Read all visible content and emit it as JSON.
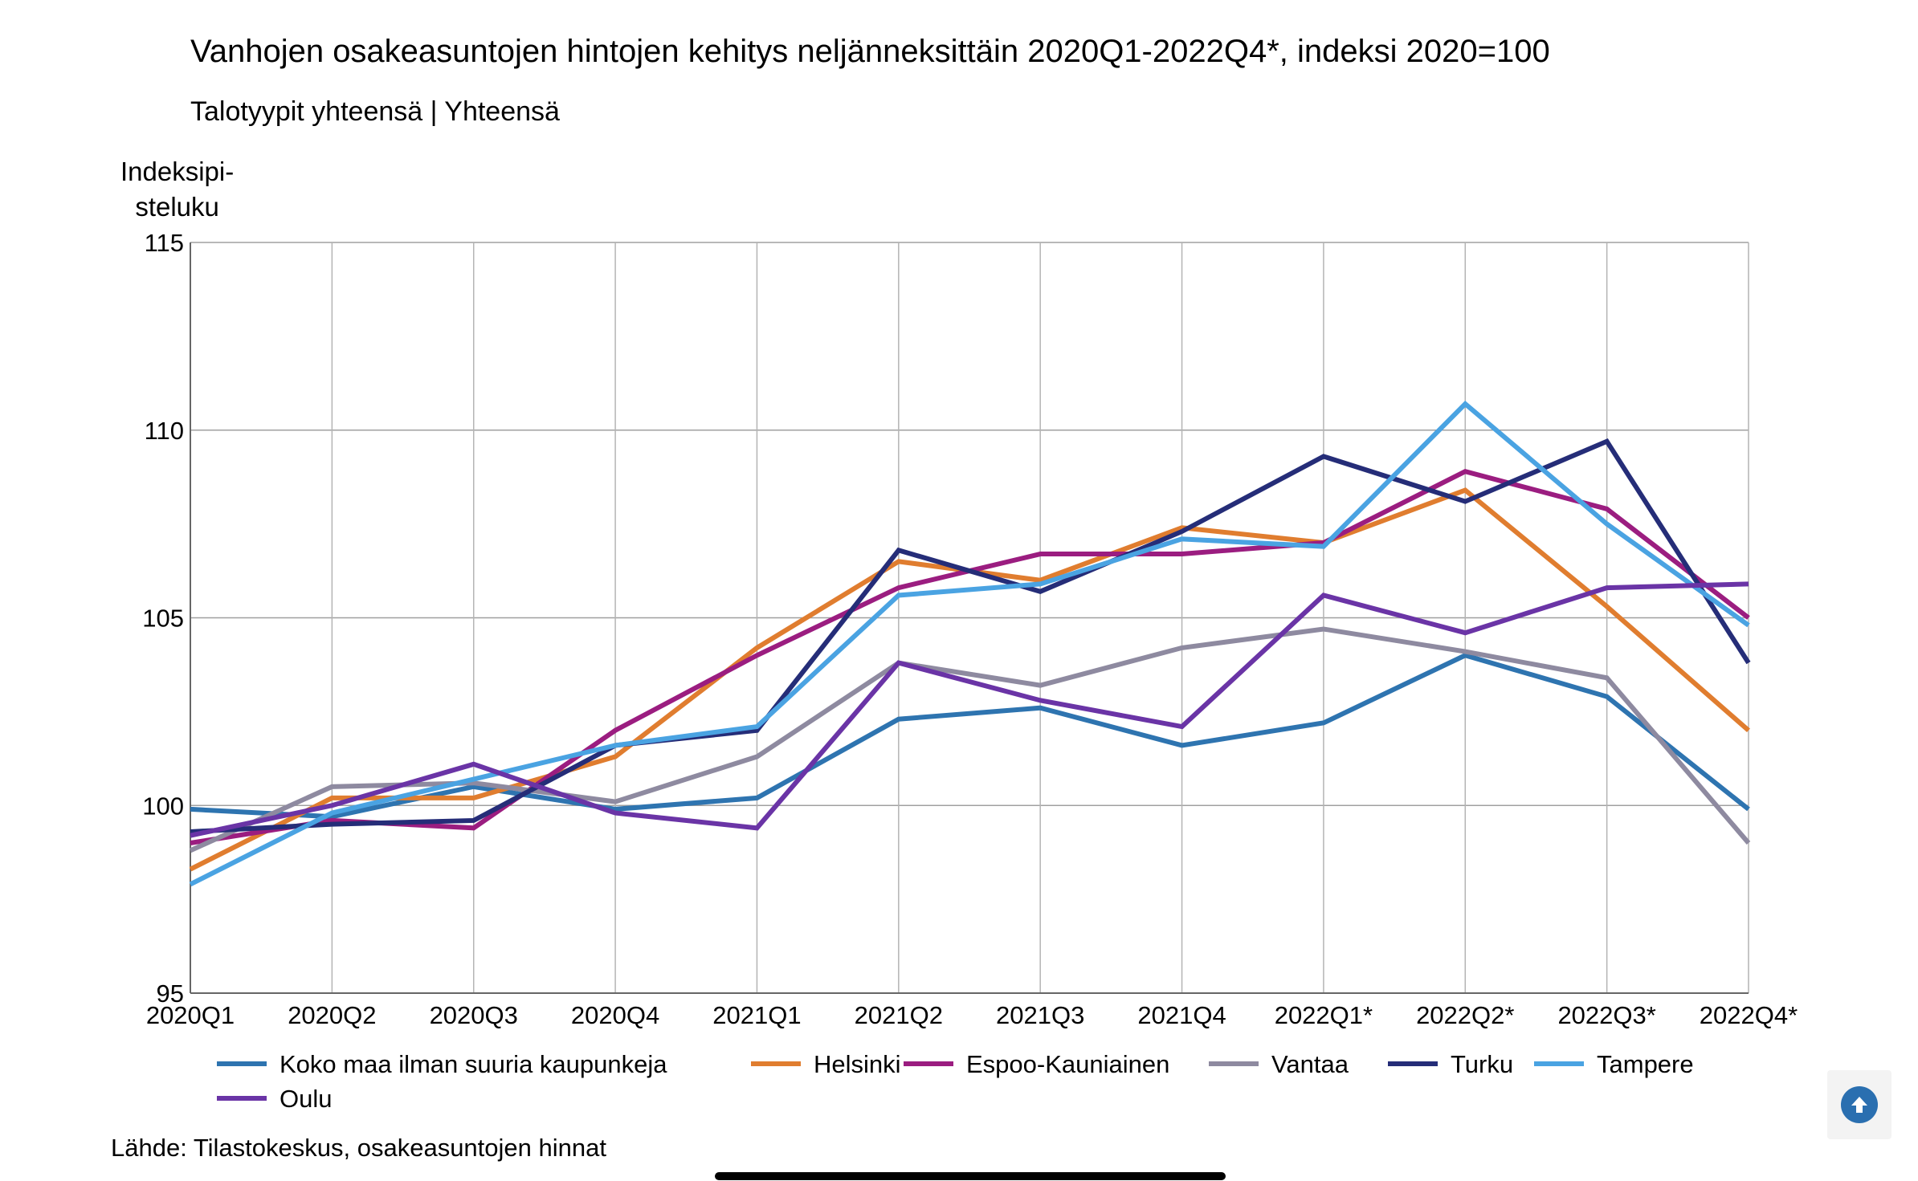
{
  "chart_data": {
    "type": "line",
    "title": "Vanhojen osakeasuntojen hintojen kehitys neljänneksittäin 2020Q1-2022Q4*, indeksi 2020=100",
    "subtitle": "Talotyypit yhteensä | Yhteensä",
    "ylabel_lines": [
      "Indeksipi-",
      "steluku"
    ],
    "xlabel": "",
    "categories": [
      "2020Q1",
      "2020Q2",
      "2020Q3",
      "2020Q4",
      "2021Q1",
      "2021Q2",
      "2021Q3",
      "2021Q4",
      "2022Q1*",
      "2022Q2*",
      "2022Q3*",
      "2022Q4*"
    ],
    "ylim": [
      95,
      115
    ],
    "yticks": [
      95,
      100,
      105,
      110,
      115
    ],
    "grid": true,
    "legend_position": "bottom",
    "series": [
      {
        "name": "Koko maa ilman suuria kaupunkeja",
        "color": "#2e74b0",
        "values": [
          99.9,
          99.7,
          100.5,
          99.9,
          100.2,
          102.3,
          102.6,
          101.6,
          102.2,
          104.0,
          102.9,
          99.9
        ]
      },
      {
        "name": "Helsinki",
        "color": "#e07d2f",
        "values": [
          98.3,
          100.2,
          100.2,
          101.3,
          104.2,
          106.5,
          106.0,
          107.4,
          107.0,
          108.4,
          105.3,
          102.0
        ]
      },
      {
        "name": "Espoo-Kauniainen",
        "color": "#9b1d80",
        "values": [
          99.0,
          99.6,
          99.4,
          102.0,
          104.0,
          105.8,
          106.7,
          106.7,
          107.0,
          108.9,
          107.9,
          105.0
        ]
      },
      {
        "name": "Vantaa",
        "color": "#8e8aa0",
        "values": [
          98.8,
          100.5,
          100.6,
          100.1,
          101.3,
          103.8,
          103.2,
          104.2,
          104.7,
          104.1,
          103.4,
          99.0
        ]
      },
      {
        "name": "Turku",
        "color": "#252d78",
        "values": [
          99.3,
          99.5,
          99.6,
          101.6,
          102.0,
          106.8,
          105.7,
          107.3,
          109.3,
          108.1,
          109.7,
          103.8
        ]
      },
      {
        "name": "Tampere",
        "color": "#4aa3e2",
        "values": [
          97.9,
          99.8,
          100.7,
          101.6,
          102.1,
          105.6,
          105.9,
          107.1,
          106.9,
          110.7,
          107.5,
          104.8
        ]
      },
      {
        "name": "Oulu",
        "color": "#6a34a6",
        "values": [
          99.2,
          100.0,
          101.1,
          99.8,
          99.4,
          103.8,
          102.8,
          102.1,
          105.6,
          104.6,
          105.8,
          105.9
        ]
      }
    ],
    "source": "Lähde: Tilastokeskus, osakeasuntojen hinnat"
  },
  "ui": {
    "scroll_top_icon": "arrow-up-circle-icon"
  }
}
